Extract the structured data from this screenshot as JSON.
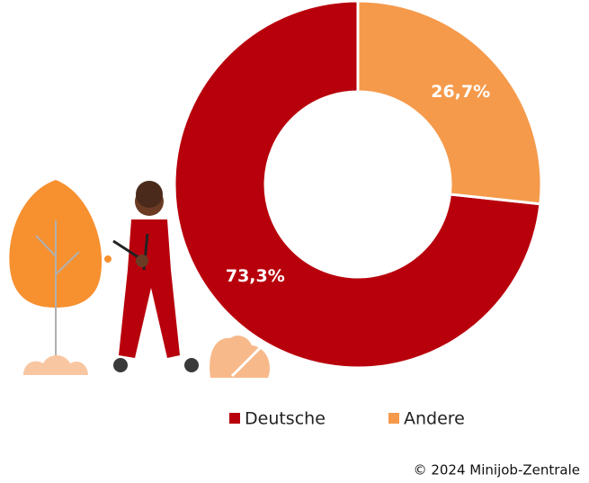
{
  "chart_data": {
    "type": "donut",
    "categories": [
      "Deutsche",
      "Andere"
    ],
    "values": [
      73.3,
      26.7
    ],
    "value_labels": [
      "73,3%",
      "26,7%"
    ],
    "colors": [
      "#b8000c",
      "#f59a4b"
    ],
    "source": "© 2024 Minijob-Zentrale"
  }
}
